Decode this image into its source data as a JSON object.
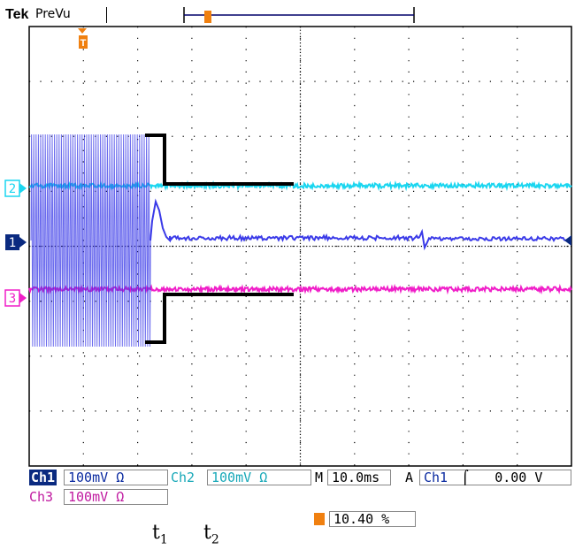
{
  "status_bar": {
    "brand": "Tek",
    "mode": "PreVu",
    "trigger_marker_glyph": "T"
  },
  "channel_markers": {
    "ch2": "2",
    "ch1": "1",
    "ch3": "3"
  },
  "colors": {
    "ch1": "#3a3ae8",
    "ch2": "#1ad6f0",
    "ch3": "#f01ec8",
    "trigger": "#f08010",
    "grid": "#000000",
    "reference": "#000000"
  },
  "readout": {
    "ch1_label": "Ch1",
    "ch1_scale": "100mV",
    "ch1_coupling_symbol": "Ω",
    "ch2_label": "Ch2",
    "ch2_scale": "100mV",
    "ch2_coupling_symbol": "Ω",
    "timebase_prefix": "M",
    "timebase": "10.0ms",
    "trigger_prefix": "A",
    "trigger_source": "Ch1",
    "trigger_slope_symbol": "⌠",
    "trigger_level": "0.00 V",
    "ch3_label": "Ch3",
    "ch3_scale": "100mV",
    "ch3_coupling_symbol": "Ω",
    "trigger_position": "10.40 %"
  },
  "annotations": {
    "t1_base": "t",
    "t1_sub": "1",
    "t2_base": "t",
    "t2_sub": "2"
  }
}
